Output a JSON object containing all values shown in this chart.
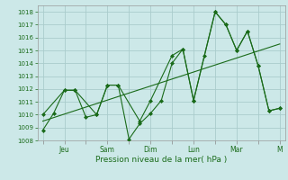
{
  "background_color": "#cce8e8",
  "grid_color": "#aacccc",
  "line_color": "#1a6b1a",
  "marker_color": "#1a6b1a",
  "xlabel": "Pression niveau de la mer( hPa )",
  "ylim": [
    1008,
    1018.5
  ],
  "yticks": [
    1008,
    1009,
    1010,
    1011,
    1012,
    1013,
    1014,
    1015,
    1016,
    1017,
    1018
  ],
  "xtick_labels": [
    "",
    "Jeu",
    "",
    "Sam",
    "",
    "Dim",
    "",
    "Lun",
    "",
    "Mar",
    "",
    "M"
  ],
  "xtick_positions": [
    0,
    2,
    4,
    6,
    8,
    10,
    12,
    14,
    16,
    18,
    20,
    22
  ],
  "series1_x": [
    0,
    1,
    2,
    3,
    4,
    5,
    6,
    7,
    8,
    9,
    10,
    11,
    12,
    13,
    14,
    15,
    16,
    17,
    18,
    19,
    20,
    21,
    22
  ],
  "series1_y": [
    1008.8,
    1010.1,
    1011.9,
    1011.9,
    1009.8,
    1010.0,
    1012.3,
    1012.3,
    1008.1,
    1009.3,
    1010.1,
    1011.1,
    1014.0,
    1015.1,
    1011.1,
    1014.6,
    1018.0,
    1017.0,
    1015.0,
    1016.5,
    1013.8,
    1010.3,
    1010.5
  ],
  "series2_x": [
    0,
    2,
    3,
    5,
    6,
    7,
    9,
    10,
    12,
    13,
    14,
    16,
    17,
    18,
    19,
    20,
    21,
    22
  ],
  "series2_y": [
    1010.0,
    1011.9,
    1011.9,
    1010.0,
    1012.3,
    1012.3,
    1009.5,
    1011.1,
    1014.6,
    1015.1,
    1011.1,
    1018.0,
    1017.0,
    1015.0,
    1016.5,
    1013.8,
    1010.3,
    1010.5
  ],
  "series3_x": [
    0,
    22
  ],
  "series3_y": [
    1009.5,
    1015.5
  ],
  "figwidth": 3.2,
  "figheight": 2.0,
  "dpi": 100
}
